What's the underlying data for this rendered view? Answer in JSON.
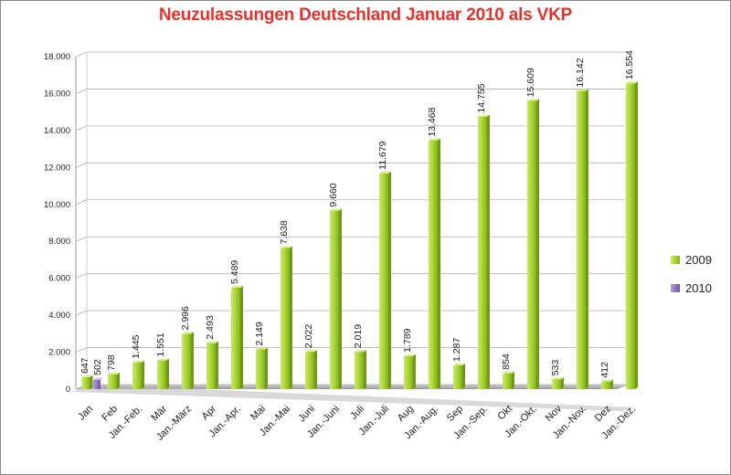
{
  "chart_data": {
    "type": "bar",
    "title": "Neuzulassungen Deutschland Januar 2010 als VKP",
    "categories": [
      "Jan",
      "Feb",
      "Jan.-Feb.",
      "Mär",
      "Jan.-März",
      "Apr",
      "Jan.-Apr.",
      "Mai",
      "Jan.-Mai",
      "Juni",
      "Jan.-Juni",
      "Juli",
      "Jan.-Juli",
      "Aug",
      "Jan.-Aug.",
      "Sep",
      "Jan.-Sep.",
      "Okt",
      "Jan.-Okt.",
      "Nov",
      "Jan.-Nov.",
      "Dez",
      "Jan.-Dez."
    ],
    "series": [
      {
        "name": "2009",
        "color": "#9dcc2b",
        "values": [
          647,
          798,
          1445,
          1551,
          2996,
          2493,
          5489,
          2149,
          7638,
          2022,
          9660,
          2019,
          11679,
          1789,
          13468,
          1287,
          14755,
          854,
          15609,
          533,
          16142,
          412,
          16554
        ],
        "labels": [
          "647",
          "798",
          "1.445",
          "1.551",
          "2.996",
          "2.493",
          "5.489",
          "2.149",
          "7.638",
          "2.022",
          "9.660",
          "2.019",
          "11.679",
          "1.789",
          "13.468",
          "1.287",
          "14.755",
          "854",
          "15.609",
          "533",
          "16.142",
          "412",
          "16.554"
        ]
      },
      {
        "name": "2010",
        "color": "#8e6fb8",
        "values": [
          502,
          null,
          null,
          null,
          null,
          null,
          null,
          null,
          null,
          null,
          null,
          null,
          null,
          null,
          null,
          null,
          null,
          null,
          null,
          null,
          null,
          null,
          null
        ],
        "labels": [
          "502",
          "",
          "",
          "",
          "",
          "",
          "",
          "",
          "",
          "",
          "",
          "",
          "",
          "",
          "",
          "",
          "",
          "",
          "",
          "",
          "",
          "",
          ""
        ]
      }
    ],
    "ylim": [
      0,
      18000
    ],
    "yticks": [
      0,
      2000,
      4000,
      6000,
      8000,
      10000,
      12000,
      14000,
      16000,
      18000
    ],
    "ytick_labels": [
      "0",
      "2.000",
      "4.000",
      "6.000",
      "8.000",
      "10.000",
      "12.000",
      "14.000",
      "16.000",
      "18.000"
    ],
    "legend": "right",
    "grid": true
  }
}
